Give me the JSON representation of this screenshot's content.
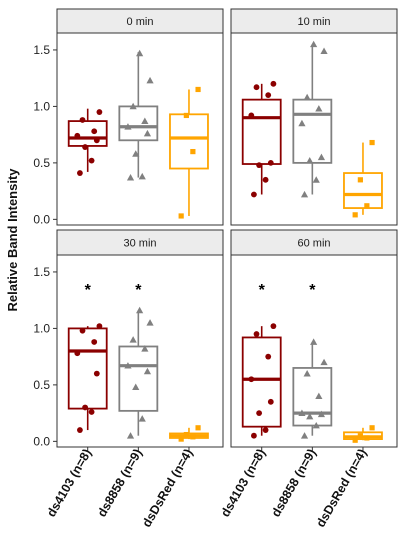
{
  "chart_data": {
    "type": "box",
    "ylabel": "Relative Band Intensity",
    "xlabel": "",
    "ylim": [
      -0.05,
      1.65
    ],
    "yticks": [
      "0.0",
      "0.5",
      "1.0",
      "1.5"
    ],
    "categories": [
      "ds4103 (n=8)",
      "ds8858 (n=9)",
      "dsDsRed (n=4)"
    ],
    "series_colors": {
      "ds4103 (n=8)": "#8b0000",
      "ds8858 (n=9)": "#808080",
      "dsDsRed (n=4)": "#ffa500"
    },
    "point_shapes": {
      "ds4103 (n=8)": "circle",
      "ds8858 (n=9)": "triangle",
      "dsDsRed (n=4)": "square"
    },
    "panels": [
      {
        "label": "0 min",
        "boxes": [
          {
            "category": "ds4103 (n=8)",
            "q1": 0.65,
            "median": 0.72,
            "q3": 0.87,
            "whisker_low": 0.42,
            "whisker_high": 0.98,
            "points": [
              0.41,
              0.52,
              0.64,
              0.7,
              0.74,
              0.78,
              0.88,
              0.95
            ],
            "significant": false
          },
          {
            "category": "ds8858 (n=9)",
            "q1": 0.7,
            "median": 0.82,
            "q3": 1.0,
            "whisker_low": 0.37,
            "whisker_high": 1.48,
            "points": [
              0.37,
              0.38,
              0.58,
              0.76,
              0.82,
              0.87,
              1.0,
              1.23,
              1.47
            ],
            "significant": false
          },
          {
            "category": "dsDsRed (n=4)",
            "q1": 0.45,
            "median": 0.72,
            "q3": 0.93,
            "whisker_low": 0.03,
            "whisker_high": 1.15,
            "points": [
              0.03,
              0.6,
              0.92,
              1.15
            ],
            "significant": false
          }
        ]
      },
      {
        "label": "10 min",
        "boxes": [
          {
            "category": "ds4103 (n=8)",
            "q1": 0.49,
            "median": 0.9,
            "q3": 1.06,
            "whisker_low": 0.22,
            "whisker_high": 1.2,
            "points": [
              0.22,
              0.35,
              0.48,
              0.5,
              0.92,
              1.1,
              1.17,
              1.2
            ],
            "significant": false
          },
          {
            "category": "ds8858 (n=9)",
            "q1": 0.5,
            "median": 0.93,
            "q3": 1.06,
            "whisker_low": 0.22,
            "whisker_high": 1.55,
            "points": [
              0.22,
              0.35,
              0.52,
              0.55,
              0.85,
              0.98,
              1.08,
              1.49,
              1.55
            ],
            "significant": false
          },
          {
            "category": "dsDsRed (n=4)",
            "q1": 0.1,
            "median": 0.22,
            "q3": 0.41,
            "whisker_low": 0.04,
            "whisker_high": 0.68,
            "points": [
              0.04,
              0.12,
              0.35,
              0.68
            ],
            "significant": false
          }
        ]
      },
      {
        "label": "30 min",
        "boxes": [
          {
            "category": "ds4103 (n=8)",
            "q1": 0.29,
            "median": 0.8,
            "q3": 1.0,
            "whisker_low": 0.1,
            "whisker_high": 1.02,
            "points": [
              0.1,
              0.26,
              0.3,
              0.6,
              0.78,
              0.88,
              0.98,
              1.02
            ],
            "significant": true
          },
          {
            "category": "ds8858 (n=9)",
            "q1": 0.27,
            "median": 0.67,
            "q3": 0.84,
            "whisker_low": 0.05,
            "whisker_high": 1.16,
            "points": [
              0.05,
              0.2,
              0.48,
              0.62,
              0.67,
              0.82,
              0.9,
              1.05,
              1.16
            ],
            "significant": true
          },
          {
            "category": "dsDsRed (n=4)",
            "q1": 0.03,
            "median": 0.05,
            "q3": 0.07,
            "whisker_low": 0.02,
            "whisker_high": 0.12,
            "points": [
              0.02,
              0.04,
              0.06,
              0.12
            ],
            "significant": false
          }
        ]
      },
      {
        "label": "60 min",
        "boxes": [
          {
            "category": "ds4103 (n=8)",
            "q1": 0.13,
            "median": 0.55,
            "q3": 0.92,
            "whisker_low": 0.05,
            "whisker_high": 1.02,
            "points": [
              0.05,
              0.1,
              0.25,
              0.35,
              0.55,
              0.75,
              0.95,
              1.02
            ],
            "significant": true
          },
          {
            "category": "ds8858 (n=9)",
            "q1": 0.14,
            "median": 0.25,
            "q3": 0.65,
            "whisker_low": 0.05,
            "whisker_high": 0.88,
            "points": [
              0.05,
              0.14,
              0.22,
              0.24,
              0.25,
              0.4,
              0.6,
              0.7,
              0.88
            ],
            "significant": true
          },
          {
            "category": "dsDsRed (n=4)",
            "q1": 0.02,
            "median": 0.04,
            "q3": 0.08,
            "whisker_low": 0.01,
            "whisker_high": 0.12,
            "points": [
              0.01,
              0.03,
              0.05,
              0.12
            ],
            "significant": false
          }
        ]
      }
    ],
    "significance_marker": "*",
    "grid": false,
    "legend": "none"
  }
}
